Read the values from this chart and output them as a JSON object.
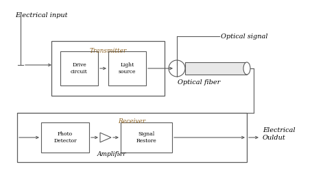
{
  "bg_color": "#ffffff",
  "line_color": "#5a5a5a",
  "title_color": "#8b6020",
  "electrical_input_text": "Electrical input",
  "optical_signal_text": "Optical signal",
  "optical_fiber_text": "Optical fiber",
  "electrical_output_text": "Electrical\nOuldut",
  "transmitter_label": "Transmitter",
  "receiver_label": "Receiver",
  "amplifier_label": "Amplifier",
  "drive_circuit_label": "Drive\ncircuit",
  "light_source_label": "Light\nsource",
  "photo_detector_label": "Photo\nDetector",
  "signal_restore_label": "Signal\nRestore",
  "figsize": [
    4.74,
    2.5
  ],
  "dpi": 100
}
